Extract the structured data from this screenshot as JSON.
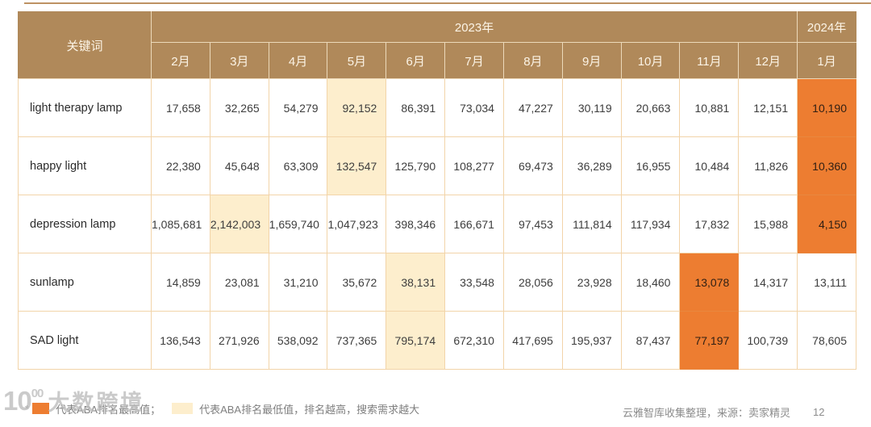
{
  "table": {
    "corner_header": "关键词",
    "year_groups": [
      {
        "label": "2023年",
        "span": 11
      },
      {
        "label": "2024年",
        "span": 1
      }
    ],
    "months": [
      "2月",
      "3月",
      "4月",
      "5月",
      "6月",
      "7月",
      "8月",
      "9月",
      "10月",
      "11月",
      "12月",
      "1月"
    ],
    "rows": [
      {
        "keyword": "light therapy lamp",
        "values": [
          "17,658",
          "32,265",
          "54,279",
          "92,152",
          "86,391",
          "73,034",
          "47,227",
          "30,119",
          "20,663",
          "10,881",
          "12,151",
          "10,190"
        ],
        "yellow_index": 3,
        "orange_index": 11
      },
      {
        "keyword": "happy light",
        "values": [
          "22,380",
          "45,648",
          "63,309",
          "132,547",
          "125,790",
          "108,277",
          "69,473",
          "36,289",
          "16,955",
          "10,484",
          "11,826",
          "10,360"
        ],
        "yellow_index": 3,
        "orange_index": 11
      },
      {
        "keyword": "depression lamp",
        "values": [
          "1,085,681",
          "2,142,003",
          "1,659,740",
          "1,047,923",
          "398,346",
          "166,671",
          "97,453",
          "111,814",
          "117,934",
          "17,832",
          "15,988",
          "4,150"
        ],
        "yellow_index": 1,
        "orange_index": 11
      },
      {
        "keyword": "sunlamp",
        "values": [
          "14,859",
          "23,081",
          "31,210",
          "35,672",
          "38,131",
          "33,548",
          "28,056",
          "23,928",
          "18,460",
          "13,078",
          "14,317",
          "13,111"
        ],
        "yellow_index": 4,
        "orange_index": 9
      },
      {
        "keyword": "SAD light",
        "values": [
          "136,543",
          "271,926",
          "538,092",
          "737,365",
          "795,174",
          "672,310",
          "417,695",
          "195,937",
          "87,437",
          "77,197",
          "100,739",
          "78,605"
        ],
        "yellow_index": 4,
        "orange_index": 9
      }
    ]
  },
  "legend": {
    "asterisk": "*",
    "orange_label": "代表ABA排名最高值；",
    "yellow_label": "代表ABA排名最低值，排名越高，搜索需求越大"
  },
  "footer": {
    "source": "云雅智库收集整理，来源：卖家精灵",
    "page_number": "12"
  },
  "watermark": {
    "logo_big": "10",
    "logo_sup": "00",
    "text": "大数跨境"
  },
  "colors": {
    "header_bg": "#b0895a",
    "highlight_yellow": "#fdeecd",
    "highlight_orange": "#ed7d31",
    "body_border": "#f2d4a9",
    "header_border": "#ecd9ba"
  }
}
